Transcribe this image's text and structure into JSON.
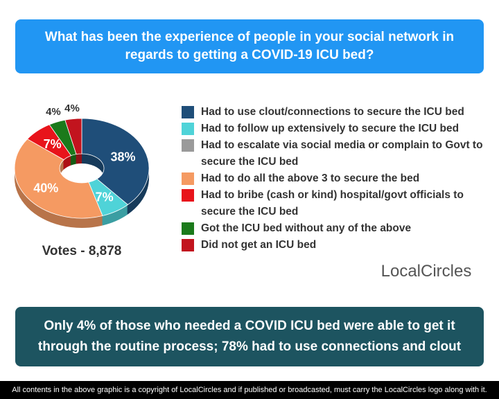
{
  "title": "What has been the experience of people in your social network in regards to getting a COVID-19 ICU bed?",
  "chart_data": {
    "type": "pie",
    "categories": [
      "Had to use clout/connections to secure the ICU bed",
      "Had to follow up extensively to secure the ICU bed",
      "Had to escalate via social media or complain to Govt to secure the ICU bed",
      "Had to do all the above 3 to secure the bed",
      "Had to bribe (cash or kind) hospital/govt officials to secure the ICU bed",
      "Got the ICU bed without any of the above",
      "Did not get an ICU bed"
    ],
    "values": [
      38,
      7,
      0,
      40,
      7,
      4,
      4
    ],
    "value_labels": [
      "38%",
      "7%",
      null,
      "40%",
      "7%",
      "4%",
      "4%"
    ],
    "colors": [
      "#1f4e79",
      "#4fd3d8",
      "#9a9a9a",
      "#f59a62",
      "#e8141b",
      "#1b7a1b",
      "#c2141e"
    ],
    "donut": true
  },
  "votes": "Votes - 8,878",
  "logo": "LocalCircles",
  "finding": "Only 4% of those who needed a COVID ICU bed were able to get it through the routine process; 78% had to use connections and clout",
  "copyright": "All contents in the above graphic is a copyright of LocalCircles and if published or broadcasted, must carry the LocalCircles logo along with it."
}
